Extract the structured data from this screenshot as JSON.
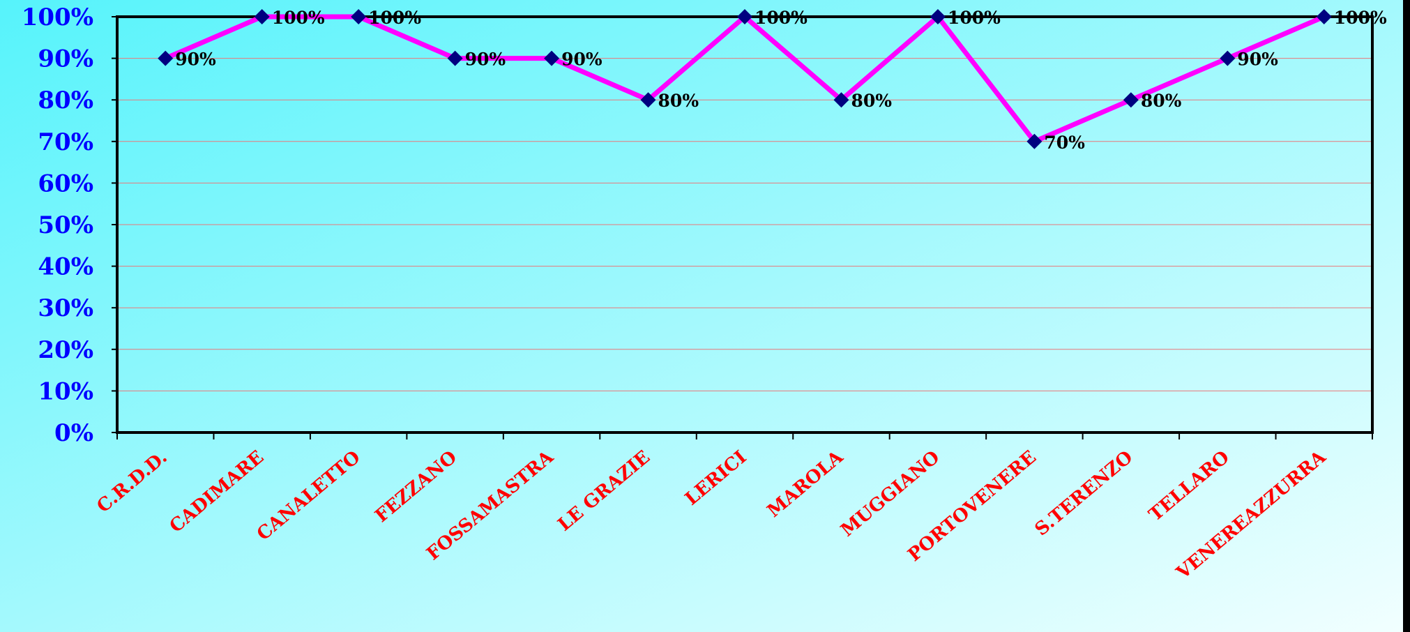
{
  "colors": {
    "bg_left": "#56f3fb",
    "bg_right": "#f2ffff",
    "line": "#ff00ff",
    "marker": "#000080",
    "y_tick_text": "#0000ff",
    "x_tick_text": "#ff0000",
    "gridline": "#e8787a",
    "frame": "#000000",
    "data_label": "#000000"
  },
  "chart_data": {
    "type": "line",
    "title": "",
    "xlabel": "",
    "ylabel": "",
    "ylim": [
      0,
      100
    ],
    "y_ticks": [
      0,
      10,
      20,
      30,
      40,
      50,
      60,
      70,
      80,
      90,
      100
    ],
    "y_tick_labels": [
      "0%",
      "10%",
      "20%",
      "30%",
      "40%",
      "50%",
      "60%",
      "70%",
      "80%",
      "90%",
      "100%"
    ],
    "grid": "horizontal",
    "legend": "none",
    "categories": [
      "C.R.D.D.",
      "CADIMARE",
      "CANALETTO",
      "FEZZANO",
      "FOSSAMASTRA",
      "LE GRAZIE",
      "LERICI",
      "MAROLA",
      "MUGGIANO",
      "PORTOVENERE",
      "S.TERENZO",
      "TELLARO",
      "VENEREAZZURRA"
    ],
    "series": [
      {
        "values": [
          90,
          100,
          100,
          90,
          90,
          80,
          100,
          80,
          100,
          70,
          80,
          90,
          100
        ],
        "labels": [
          "90%",
          "100%",
          "100%",
          "90%",
          "90%",
          "80%",
          "100%",
          "80%",
          "100%",
          "70%",
          "80%",
          "90%",
          "100%"
        ]
      }
    ]
  }
}
